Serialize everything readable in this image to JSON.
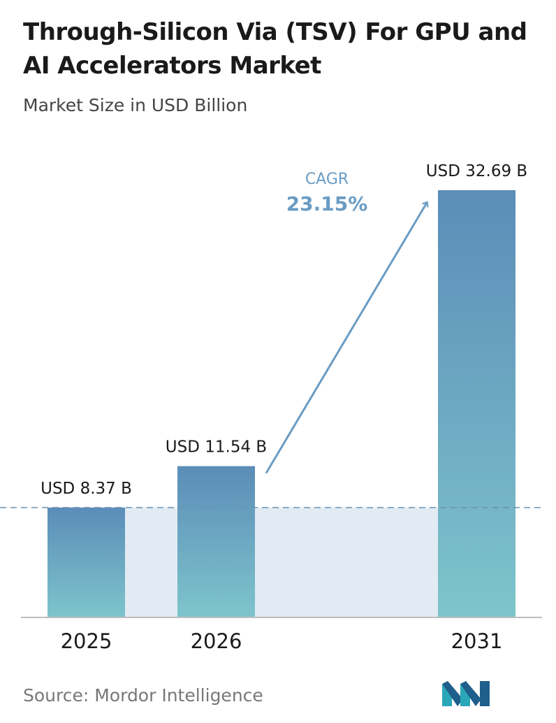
{
  "header": {
    "title": "Through-Silicon Via (TSV) For GPU and AI Accelerators Market",
    "subtitle": "Market Size in USD Billion"
  },
  "chart_data": {
    "type": "bar",
    "title": "Through-Silicon Via (TSV) For GPU and AI Accelerators Market",
    "subtitle": "Market Size in USD Billion",
    "categories": [
      "2025",
      "2026",
      "2031"
    ],
    "values": [
      8.37,
      11.54,
      32.69
    ],
    "data_labels": [
      "USD 8.37 B",
      "USD 11.54 B",
      "USD 32.69 B"
    ],
    "ylim": [
      0,
      32.69
    ],
    "grid": false,
    "annotation": {
      "label": "CAGR",
      "value": "23.15%"
    },
    "colors": {
      "bar_top": "#5b8db8",
      "bar_bottom": "#7ec4cc",
      "band": "#e2ebf3",
      "arrow": "#6a9cc4",
      "cagr_text": "#6a9cc4",
      "axis": "#bdbdbd",
      "reference_line": "#6a93b5"
    }
  },
  "footer": {
    "source": "Source: Mordor Intelligence",
    "logo_icon": "mordor-intelligence-logo-icon"
  }
}
